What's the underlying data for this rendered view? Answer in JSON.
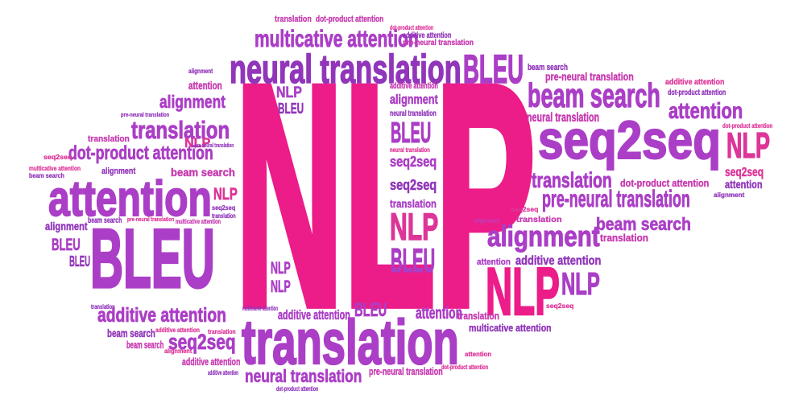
{
  "palette": {
    "pink": "#ec1c89",
    "rose": "#dd3598",
    "magenta": "#c73ab0",
    "purple": "#ab3ec6",
    "violet": "#9136ba"
  },
  "background": "#ffffff",
  "words": [
    "NLP",
    "multicative attention",
    "neural translation",
    "BLEU",
    "translation",
    "dot-product attention",
    "dot-product attention",
    "additive attention",
    "pre-neural translation",
    "beam search",
    "pre-neural translation",
    "additive attention",
    "beam search",
    "dot-product attention",
    "attention",
    "neural translation",
    "seq2seq",
    "dot-product attention",
    "NLP",
    "seq2seq",
    "attention",
    "alignment",
    "translation",
    "dot-product attention",
    "pre-neural translation",
    "seq2seq",
    "translation",
    "alignment",
    "beam search",
    "alignment",
    "translation",
    "attention",
    "additive attention",
    "NLP",
    "NLP",
    "seq2seq",
    "translation",
    "multicative attention",
    "attention",
    "attention",
    "dot-product attention",
    "additive attention",
    "alignment",
    "neural translation",
    "BLEU",
    "neural translation",
    "seq2seq",
    "seq2seq",
    "translation",
    "NLP",
    "BLEU",
    "NLP",
    "BLEU",
    "NLP",
    "NLP",
    "alignment",
    "attention",
    "alignment",
    "pre-neural translation",
    "translation",
    "translation",
    "NLP",
    "pre-neural translation",
    "dot-product attention",
    "seq2seq",
    "multicative attention",
    "beam search",
    "alignment",
    "beam search",
    "attention",
    "NLP",
    "seq2seq",
    "translation",
    "beam search",
    "pre-neural translation",
    "multicative attention",
    "alignment",
    "BLEU",
    "BLEU",
    "BLEU",
    "translation",
    "additive attention",
    "multicative attention",
    "additive attention",
    "BLEU",
    "beam search",
    "additive attention",
    "translation",
    "beam search",
    "alignment",
    "seq2seq",
    "additive attention",
    "additive attention",
    "translation",
    "neural translation",
    "pre-neural translation",
    "dot-product attention"
  ]
}
